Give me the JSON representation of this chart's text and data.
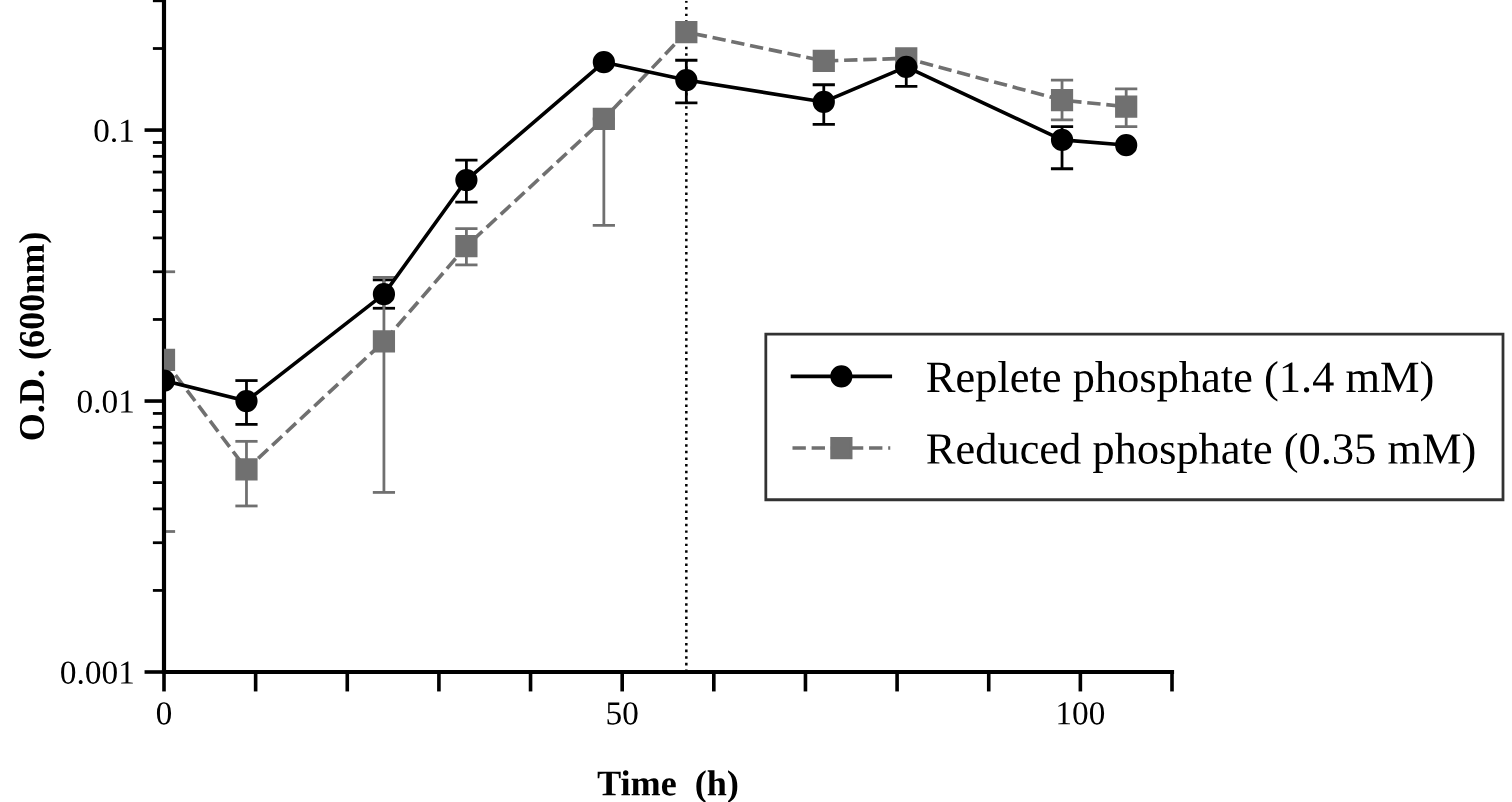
{
  "chart_data": {
    "type": "line",
    "xlabel": "Time  (h)",
    "ylabel": "O.D. (600nm)",
    "log": "y",
    "xlim": [
      0,
      110
    ],
    "xticks": [
      0,
      {
        "value": 10,
        "label": null
      },
      {
        "value": 20,
        "label": null
      },
      {
        "value": 30,
        "label": null
      },
      {
        "value": 40,
        "label": null
      },
      50,
      {
        "value": 60,
        "label": null
      },
      {
        "value": 70,
        "label": null
      },
      {
        "value": 80,
        "label": null
      },
      {
        "value": 90,
        "label": null
      },
      100,
      {
        "value": 110,
        "label": null
      }
    ],
    "ylim": [
      0.001,
      0.3
    ],
    "yticks": [
      0.001,
      0.01,
      0.1
    ],
    "legend": "right",
    "grid": false,
    "ref_lines": [
      {
        "axis": "x",
        "value": 57,
        "color": "#000000",
        "line_style": "dotted"
      }
    ],
    "series": [
      {
        "name": "Replete phosphate (1.4 mM)",
        "color": "#000000",
        "marker": "circle",
        "line_style": "solid",
        "x": [
          0,
          9,
          24,
          33,
          48,
          57,
          72,
          81,
          98,
          105
        ],
        "values": [
          0.0119,
          0.01,
          0.0248,
          0.0654,
          0.178,
          0.153,
          0.127,
          0.171,
          0.092,
          0.088
        ],
        "errors": [
          null,
          [
            0.0082,
            0.0119
          ],
          [
            0.022,
            0.028
          ],
          [
            0.0542,
            0.0775
          ],
          null,
          [
            0.126,
            0.181
          ],
          [
            0.105,
            0.147
          ],
          [
            0.145,
            0.171
          ],
          [
            0.072,
            0.103
          ],
          null
        ]
      },
      {
        "name": "Reduced phosphate (0.35 mM)",
        "color": "#707070",
        "marker": "square",
        "line_style": "dashed",
        "x": [
          0,
          9,
          24,
          33,
          48,
          57,
          72,
          81,
          98,
          105
        ],
        "values": [
          0.0142,
          0.0056,
          0.0166,
          0.0373,
          0.11,
          0.23,
          0.18,
          0.184,
          0.129,
          0.122
        ],
        "errors": [
          [
            0.0033,
            0.03
          ],
          [
            0.0041,
            0.0071
          ],
          [
            0.0046,
            0.0286
          ],
          [
            0.0318,
            0.0433
          ],
          [
            0.0445,
            0.11
          ],
          null,
          null,
          null,
          [
            0.109,
            0.153
          ],
          [
            0.103,
            0.142
          ]
        ]
      }
    ]
  }
}
